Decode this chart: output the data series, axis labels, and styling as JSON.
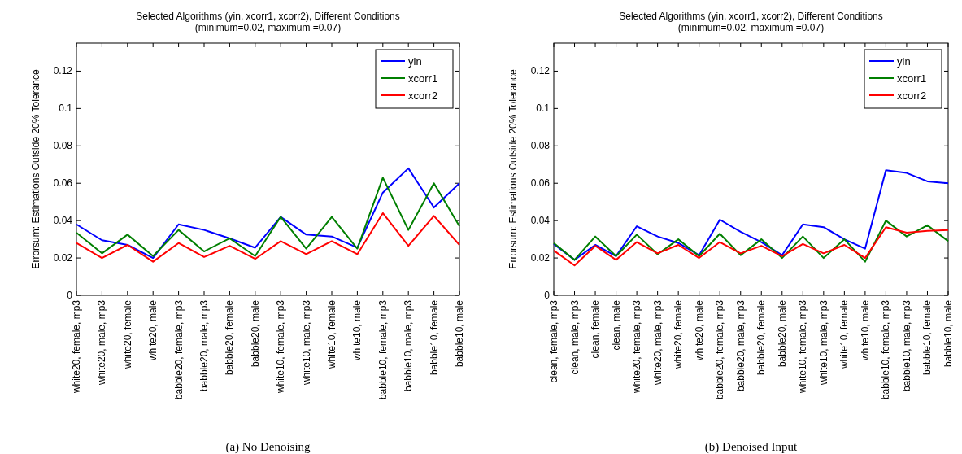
{
  "chart_data": [
    {
      "type": "line",
      "title": "Selected Algorithms (yin, xcorr1, xcorr2), Different Conditions",
      "subtitle": "(minimum=0.02, maximum =0.07)",
      "ylabel": "Errorsum: Estimations Outside 20% Tolerance",
      "categories": [
        "white20, female, mp3",
        "white20, male, mp3",
        "white20, female",
        "white20, male",
        "babble20, female, mp3",
        "babble20, male, mp3",
        "babble20, female",
        "babble20, male",
        "white10, female, mp3",
        "white10, male, mp3",
        "white10, female",
        "white10, male",
        "babble10, female, mp3",
        "babble10, male, mp3",
        "babble10, female",
        "babble10, male"
      ],
      "series": [
        {
          "name": "yin",
          "color": "#0000ff",
          "values": [
            0.038,
            0.0295,
            0.027,
            0.02,
            0.038,
            0.035,
            0.0305,
            0.0255,
            0.042,
            0.0325,
            0.0315,
            0.0255,
            0.055,
            0.068,
            0.047,
            0.06
          ]
        },
        {
          "name": "xcorr1",
          "color": "#007f00",
          "values": [
            0.0335,
            0.0225,
            0.0325,
            0.021,
            0.035,
            0.0235,
            0.0305,
            0.021,
            0.042,
            0.025,
            0.042,
            0.025,
            0.063,
            0.035,
            0.06,
            0.037
          ]
        },
        {
          "name": "xcorr2",
          "color": "#ff0000",
          "values": [
            0.028,
            0.02,
            0.027,
            0.018,
            0.028,
            0.0205,
            0.0265,
            0.0195,
            0.029,
            0.022,
            0.029,
            0.022,
            0.044,
            0.0265,
            0.0425,
            0.027
          ]
        }
      ],
      "ylim": [
        0,
        0.135
      ],
      "yticks": [
        0,
        0.02,
        0.04,
        0.06,
        0.08,
        0.1,
        0.12
      ],
      "legend": "top right",
      "grid": false,
      "annotations": [
        "(a) No Denoising"
      ]
    },
    {
      "type": "line",
      "title": "Selected Algorithms (yin, xcorr1, xcorr2), Different Conditions",
      "subtitle": "(minimum=0.02, maximum =0.07)",
      "ylabel": "Errorsum: Estimations Outside 20% Tolerance",
      "categories": [
        "clean, female, mp3",
        "clean, male, mp3",
        "clean, female",
        "clean, male",
        "white20, female, mp3",
        "white20, male, mp3",
        "white20, female",
        "white20, male",
        "babble20, female, mp3",
        "babble20, male, mp3",
        "babble20, female",
        "babble20, male",
        "white10, female, mp3",
        "white10, male, mp3",
        "white10, female",
        "white10, male",
        "babble10, female, mp3",
        "babble10, male, mp3",
        "babble10, female",
        "babble10, male"
      ],
      "series": [
        {
          "name": "yin",
          "color": "#0000ff",
          "values": [
            0.0275,
            0.019,
            0.027,
            0.021,
            0.037,
            0.0315,
            0.028,
            0.0215,
            0.0405,
            0.034,
            0.0285,
            0.0215,
            0.038,
            0.0365,
            0.03,
            0.025,
            0.067,
            0.0655,
            0.061,
            0.06
          ]
        },
        {
          "name": "xcorr1",
          "color": "#007f00",
          "values": [
            0.028,
            0.019,
            0.0315,
            0.021,
            0.0325,
            0.022,
            0.03,
            0.021,
            0.033,
            0.0215,
            0.03,
            0.02,
            0.0315,
            0.02,
            0.03,
            0.018,
            0.04,
            0.0315,
            0.0375,
            0.029
          ]
        },
        {
          "name": "xcorr2",
          "color": "#ff0000",
          "values": [
            0.024,
            0.016,
            0.0265,
            0.019,
            0.0285,
            0.0225,
            0.027,
            0.02,
            0.0285,
            0.0225,
            0.0265,
            0.021,
            0.0275,
            0.0225,
            0.027,
            0.02,
            0.0365,
            0.0335,
            0.0345,
            0.035
          ]
        }
      ],
      "ylim": [
        0,
        0.135
      ],
      "yticks": [
        0,
        0.02,
        0.04,
        0.06,
        0.08,
        0.1,
        0.12
      ],
      "legend": "top right",
      "grid": false,
      "annotations": [
        "(b) Denoised Input"
      ]
    }
  ]
}
